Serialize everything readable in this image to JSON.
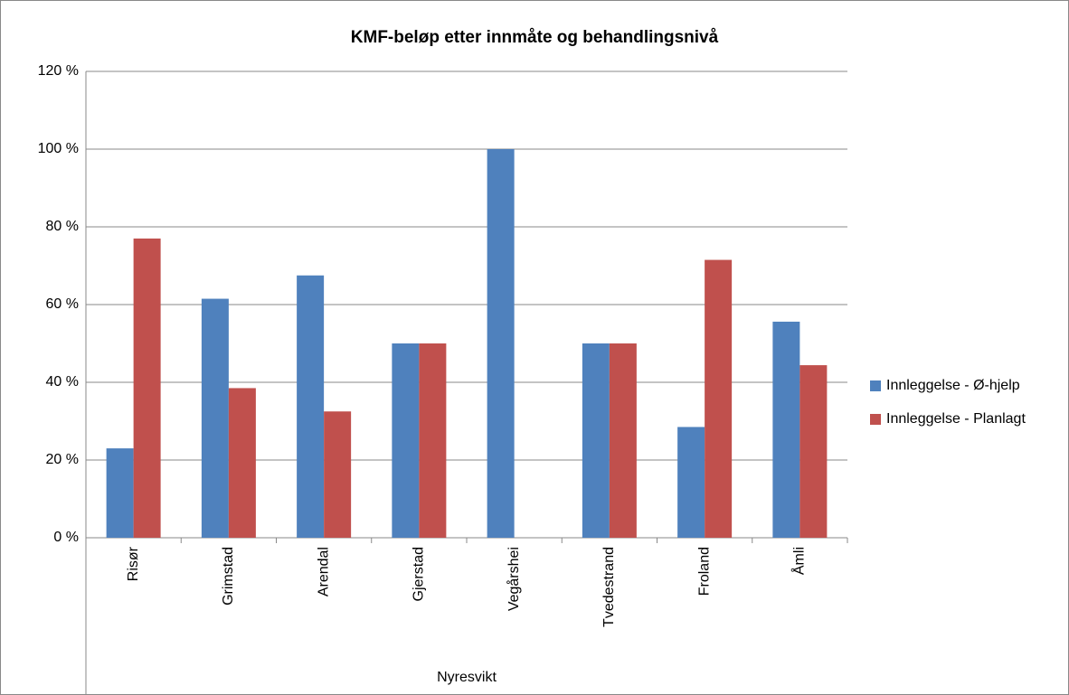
{
  "chart_data": {
    "type": "bar",
    "title": "KMF-beløp etter innmåte og behandlingsnivå",
    "x_label": "Nyresvikt",
    "categories": [
      "Risør",
      "Grimstad",
      "Arendal",
      "Gjerstad",
      "Vegårshei",
      "Tvedestrand",
      "Froland",
      "Åmli"
    ],
    "series": [
      {
        "name": "Innleggelse - Ø-hjelp",
        "color": "#4f81bd",
        "values": [
          23,
          61.5,
          67.5,
          50,
          100,
          50,
          28.5,
          55.6
        ]
      },
      {
        "name": "Innleggelse - Planlagt",
        "color": "#c0504d",
        "values": [
          77,
          38.5,
          32.5,
          50,
          0,
          50,
          71.5,
          44.4
        ]
      }
    ],
    "ylim": [
      0,
      120
    ],
    "yticks": [
      {
        "value": 0,
        "label": "0 %"
      },
      {
        "value": 20,
        "label": "20 %"
      },
      {
        "value": 40,
        "label": "40 %"
      },
      {
        "value": 60,
        "label": "60 %"
      },
      {
        "value": 80,
        "label": "80 %"
      },
      {
        "value": 100,
        "label": "100 %"
      },
      {
        "value": 120,
        "label": "120 %"
      }
    ],
    "grid": true,
    "legend": "right"
  }
}
